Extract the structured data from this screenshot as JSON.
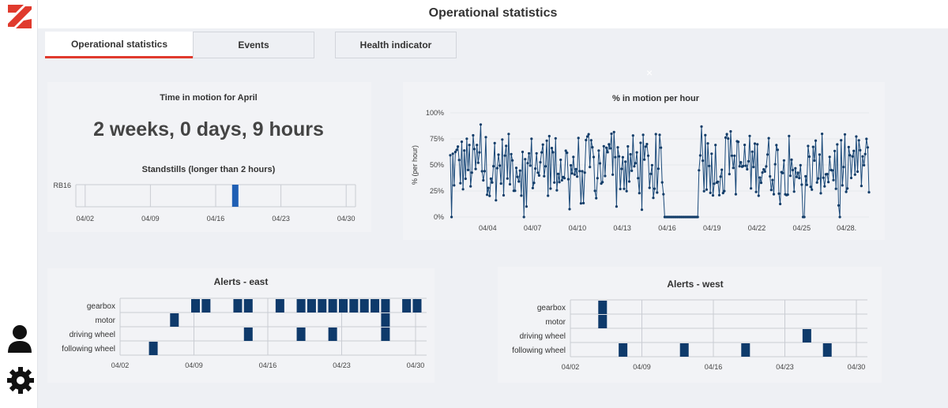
{
  "header": {
    "title": "Operational statistics"
  },
  "tabs": [
    {
      "label": "Operational statistics",
      "active": true
    },
    {
      "label": "Events",
      "active": false
    },
    {
      "label": "Health indicator",
      "active": false
    }
  ],
  "time_in_motion": {
    "title": "Time in motion for April",
    "value": "2 weeks, 0 days, 9 hours"
  },
  "close_glyph": "×",
  "colors": {
    "accent": "#e03a2d",
    "bar": "#0e3a6b",
    "blue_bar": "#1f5fb4",
    "grid": "#c9ccd3"
  },
  "chart_data": [
    {
      "id": "standstills",
      "type": "bar",
      "title": "Standstills (longer than 2 hours)",
      "categories": [
        "RB16"
      ],
      "x_ticks": [
        "04/02",
        "04/09",
        "04/16",
        "04/23",
        "04/30"
      ],
      "xlim": [
        "04/01",
        "05/01"
      ],
      "bars": [
        {
          "category": "RB16",
          "start": "04/17",
          "end": "04/18"
        }
      ]
    },
    {
      "id": "motion_per_hour",
      "type": "line",
      "title": "% in motion per hour",
      "ylabel": "% (per hour)",
      "y_ticks": [
        "100%",
        "75%",
        "50%",
        "25%",
        "0%"
      ],
      "ylim": [
        0,
        100
      ],
      "x_ticks": [
        "04/04",
        "04/07",
        "04/10",
        "04/13",
        "04/16",
        "04/19",
        "04/22",
        "04/25",
        "04/28."
      ],
      "xlim": [
        "04/02",
        "04/30"
      ],
      "zero_period": [
        "04/16",
        "04/18"
      ],
      "zero_period_2": [
        "04/25",
        "04/26"
      ]
    },
    {
      "id": "alerts_east",
      "type": "heatmap",
      "title": "Alerts - east",
      "categories": [
        "gearbox",
        "motor",
        "driving wheel",
        "following wheel"
      ],
      "x_ticks": [
        "04/02",
        "04/09",
        "04/16",
        "04/23",
        "04/30"
      ],
      "xlim": [
        "04/02",
        "04/30"
      ],
      "cells": [
        {
          "category": "following wheel",
          "date": "04/05"
        },
        {
          "category": "motor",
          "date": "04/07"
        },
        {
          "category": "gearbox",
          "date": "04/09"
        },
        {
          "category": "gearbox",
          "date": "04/10"
        },
        {
          "category": "gearbox",
          "date": "04/13"
        },
        {
          "category": "gearbox",
          "date": "04/14"
        },
        {
          "category": "driving wheel",
          "date": "04/14"
        },
        {
          "category": "gearbox",
          "date": "04/17"
        },
        {
          "category": "gearbox",
          "date": "04/19"
        },
        {
          "category": "driving wheel",
          "date": "04/19"
        },
        {
          "category": "gearbox",
          "date": "04/20"
        },
        {
          "category": "gearbox",
          "date": "04/21"
        },
        {
          "category": "gearbox",
          "date": "04/22"
        },
        {
          "category": "driving wheel",
          "date": "04/22"
        },
        {
          "category": "gearbox",
          "date": "04/23"
        },
        {
          "category": "gearbox",
          "date": "04/24"
        },
        {
          "category": "gearbox",
          "date": "04/25"
        },
        {
          "category": "gearbox",
          "date": "04/26"
        },
        {
          "category": "gearbox",
          "date": "04/27"
        },
        {
          "category": "motor",
          "date": "04/27"
        },
        {
          "category": "driving wheel",
          "date": "04/27"
        },
        {
          "category": "gearbox",
          "date": "04/29"
        },
        {
          "category": "gearbox",
          "date": "04/30"
        }
      ]
    },
    {
      "id": "alerts_west",
      "type": "heatmap",
      "title": "Alerts - west",
      "categories": [
        "gearbox",
        "motor",
        "driving wheel",
        "following wheel"
      ],
      "x_ticks": [
        "04/02",
        "04/09",
        "04/16",
        "04/23",
        "04/30"
      ],
      "xlim": [
        "04/02",
        "04/30"
      ],
      "cells": [
        {
          "category": "gearbox",
          "date": "04/05"
        },
        {
          "category": "motor",
          "date": "04/05"
        },
        {
          "category": "following wheel",
          "date": "04/07"
        },
        {
          "category": "following wheel",
          "date": "04/13"
        },
        {
          "category": "following wheel",
          "date": "04/19"
        },
        {
          "category": "driving wheel",
          "date": "04/25"
        },
        {
          "category": "following wheel",
          "date": "04/27"
        }
      ]
    }
  ]
}
